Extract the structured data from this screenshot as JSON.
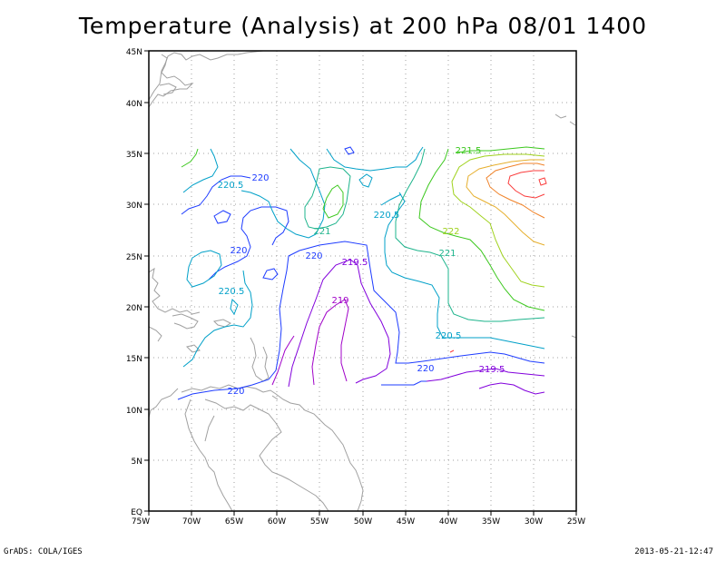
{
  "title": "Temperature (Analysis) at 200 hPa 08/01 1400",
  "footer": {
    "left": "GrADS: COLA/IGES",
    "right": "2013-05-21-12:47"
  },
  "axes": {
    "x_ticks": [
      "75W",
      "70W",
      "65W",
      "60W",
      "55W",
      "50W",
      "45W",
      "40W",
      "35W",
      "30W",
      "25W"
    ],
    "y_ticks": [
      "EQ",
      "5N",
      "10N",
      "15N",
      "20N",
      "25N",
      "30N",
      "35N",
      "40N",
      "45N"
    ]
  },
  "contour_labels": [
    {
      "text": "221.5",
      "color": "#3cc81e"
    },
    {
      "text": "220.5",
      "color": "#00a0c8"
    },
    {
      "text": "220",
      "color": "#1e3cff"
    },
    {
      "text": "220.5",
      "color": "#00a0c8"
    },
    {
      "text": "221",
      "color": "#1eb48c"
    },
    {
      "text": "222",
      "color": "#a0d21e"
    },
    {
      "text": "220",
      "color": "#1e3cff"
    },
    {
      "text": "220",
      "color": "#1e3cff"
    },
    {
      "text": "219.5",
      "color": "#8200dc"
    },
    {
      "text": "221",
      "color": "#1eb48c"
    },
    {
      "text": "220.5",
      "color": "#00a0c8"
    },
    {
      "text": "219",
      "color": "#a000c8"
    },
    {
      "text": "220.5",
      "color": "#00a0c8"
    },
    {
      "text": "220",
      "color": "#1e3cff"
    },
    {
      "text": "219.5",
      "color": "#8200dc"
    },
    {
      "text": "220",
      "color": "#1e3cff"
    }
  ],
  "colors": {
    "c219": "#a000c8",
    "c2195": "#8200dc",
    "c220": "#1e3cff",
    "c2205": "#00a0c8",
    "c221": "#1eb48c",
    "c2215": "#3cc81e",
    "c222": "#a0d21e",
    "c2225": "#e6af2d",
    "c223": "#f08228",
    "c2235": "#fa3c3c",
    "coast": "#a0a0a0",
    "grid": "#a0a0a0"
  }
}
